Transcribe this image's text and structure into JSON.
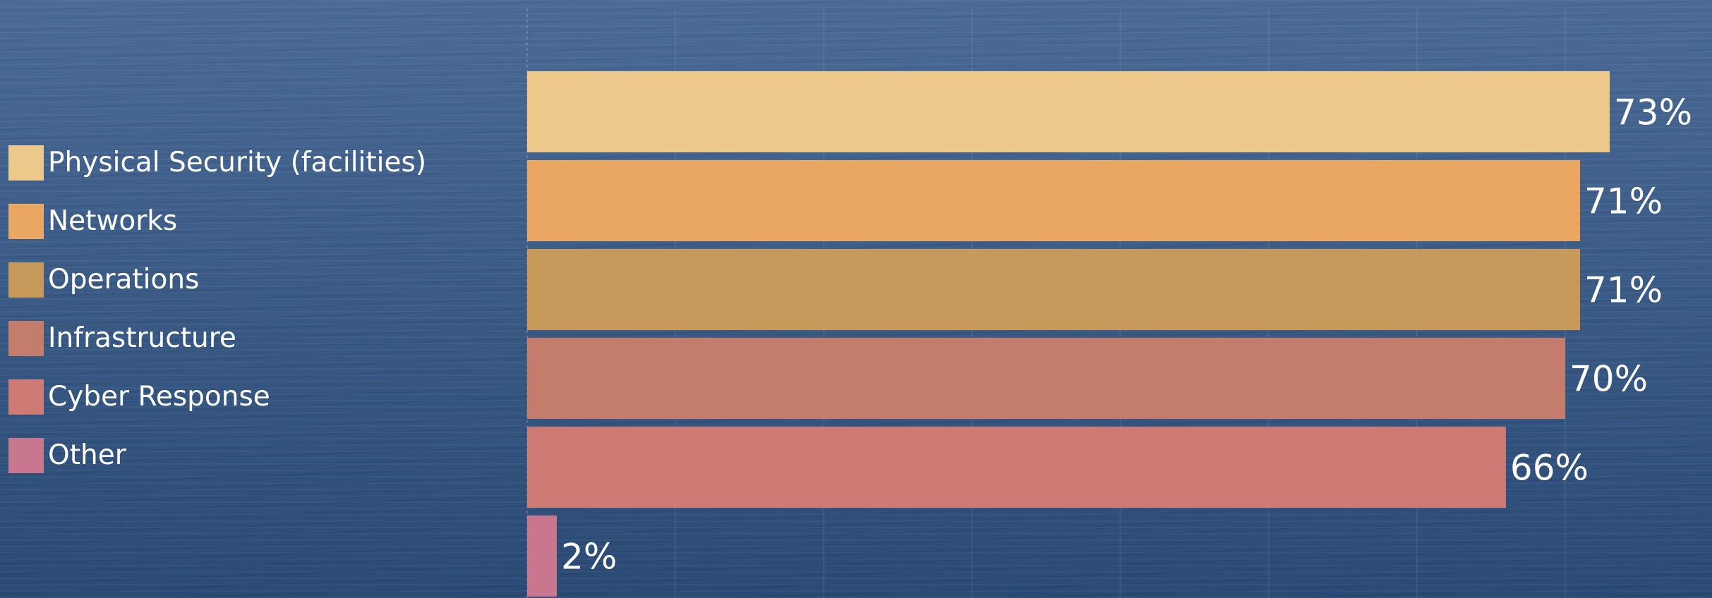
{
  "chart_data": {
    "type": "bar",
    "orientation": "horizontal",
    "categories": [
      "Physical Security (facilities)",
      "Networks",
      "Operations",
      "Infrastructure",
      "Cyber Response",
      "Other"
    ],
    "values": [
      73,
      71,
      71,
      70,
      66,
      2
    ],
    "labels": [
      "73%",
      "71%",
      "71%",
      "70%",
      "66%",
      "2%"
    ],
    "colors": [
      "#ecc98a",
      "#eaa763",
      "#c79a5c",
      "#c47d6d",
      "#ce7a75",
      "#c8778e"
    ],
    "xlim": [
      0,
      80
    ],
    "grid": true,
    "legend_position": "left",
    "title": "",
    "xlabel": "",
    "ylabel": ""
  }
}
